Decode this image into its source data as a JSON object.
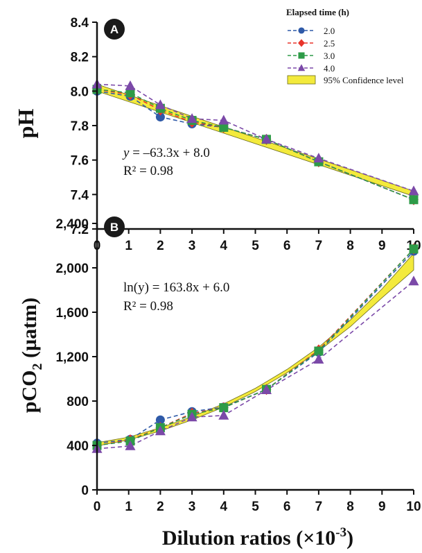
{
  "colors": {
    "series_2_0": "#2f5aa8",
    "series_2_5": "#e8342a",
    "series_3_0": "#2e9b48",
    "series_4_0": "#7b49a8",
    "confidence_fill": "#f3ea3c",
    "confidence_edge": "#6b6b1a"
  },
  "legend": {
    "title": "Elapsed time (h)",
    "entries": [
      "2.0",
      "2.5",
      "3.0",
      "4.0",
      "95% Confidence level"
    ]
  },
  "x_axis": {
    "title_main": "Dilution ratios (×10",
    "title_exp": "-3",
    "title_close": ")",
    "ticks": [
      "0",
      "1",
      "2",
      "3",
      "4",
      "5",
      "6",
      "7",
      "8",
      "9",
      "10"
    ]
  },
  "chart_data": [
    {
      "type": "line",
      "panel_label": "A",
      "ylabel": "pH",
      "ylim": [
        7.2,
        8.4
      ],
      "xlim": [
        0,
        10
      ],
      "y_ticks": [
        "7.2",
        "7.4",
        "7.6",
        "7.8",
        "8.0",
        "8.2",
        "8.4"
      ],
      "y_tick_values": [
        7.2,
        7.4,
        7.6,
        7.8,
        8.0,
        8.2,
        8.4
      ],
      "equation": {
        "lhs": "y",
        "rhs": " = –63.3x + 8.0",
        "r2": "R² = 0.98"
      },
      "x": [
        0,
        1.05,
        2.0,
        3.0,
        4.0,
        5.35,
        7.0,
        10.0
      ],
      "series": [
        {
          "name": "2.0",
          "marker": "circle",
          "values": [
            8.0,
            7.97,
            7.85,
            7.81,
            7.79,
            7.72,
            7.59,
            7.37
          ]
        },
        {
          "name": "2.5",
          "marker": "diamond",
          "values": [
            8.01,
            7.98,
            7.89,
            7.82,
            7.79,
            7.72,
            7.59,
            7.37
          ]
        },
        {
          "name": "3.0",
          "marker": "square",
          "values": [
            8.01,
            7.99,
            7.9,
            7.83,
            7.79,
            7.72,
            7.59,
            7.37
          ]
        },
        {
          "name": "4.0",
          "marker": "triangle",
          "values": [
            8.04,
            8.03,
            7.92,
            7.84,
            7.83,
            7.72,
            7.61,
            7.42
          ]
        }
      ],
      "confidence_band": {
        "x": [
          0,
          10
        ],
        "lower": [
          8.0,
          7.39
        ],
        "upper": [
          8.04,
          7.42
        ]
      }
    },
    {
      "type": "line",
      "panel_label": "B",
      "ylabel": "pCO",
      "ylabel_sub": "2",
      "ylabel_unit": " (µatm)",
      "ylim": [
        0,
        2400
      ],
      "xlim": [
        0,
        10
      ],
      "y_ticks": [
        "0",
        "400",
        "800",
        "1,200",
        "1,600",
        "2,000",
        "2,400"
      ],
      "y_tick_values": [
        0,
        400,
        800,
        1200,
        1600,
        2000,
        2400
      ],
      "equation": {
        "lhs": "ln(y)",
        "rhs": " = 163.8x + 6.0",
        "r2": "R² = 0.98"
      },
      "x": [
        0,
        1.05,
        2.0,
        3.0,
        4.0,
        5.35,
        7.0,
        10.0
      ],
      "series": [
        {
          "name": "2.0",
          "marker": "circle",
          "values": [
            420,
            455,
            630,
            705,
            745,
            905,
            1240,
            2150
          ]
        },
        {
          "name": "2.5",
          "marker": "diamond",
          "values": [
            400,
            450,
            560,
            690,
            740,
            905,
            1260,
            2170
          ]
        },
        {
          "name": "3.0",
          "marker": "square",
          "values": [
            400,
            440,
            560,
            680,
            740,
            905,
            1250,
            2170
          ]
        },
        {
          "name": "4.0",
          "marker": "triangle",
          "values": [
            370,
            395,
            530,
            655,
            670,
            900,
            1175,
            1880
          ]
        }
      ],
      "confidence_band": {
        "x": [
          0,
          1,
          2,
          3,
          4,
          5,
          6,
          7,
          8,
          9,
          10
        ],
        "lower": [
          395,
          450,
          530,
          630,
          745,
          885,
          1055,
          1250,
          1470,
          1730,
          1980
        ],
        "upper": [
          425,
          475,
          560,
          660,
          775,
          915,
          1085,
          1285,
          1530,
          1810,
          2130
        ]
      }
    }
  ]
}
